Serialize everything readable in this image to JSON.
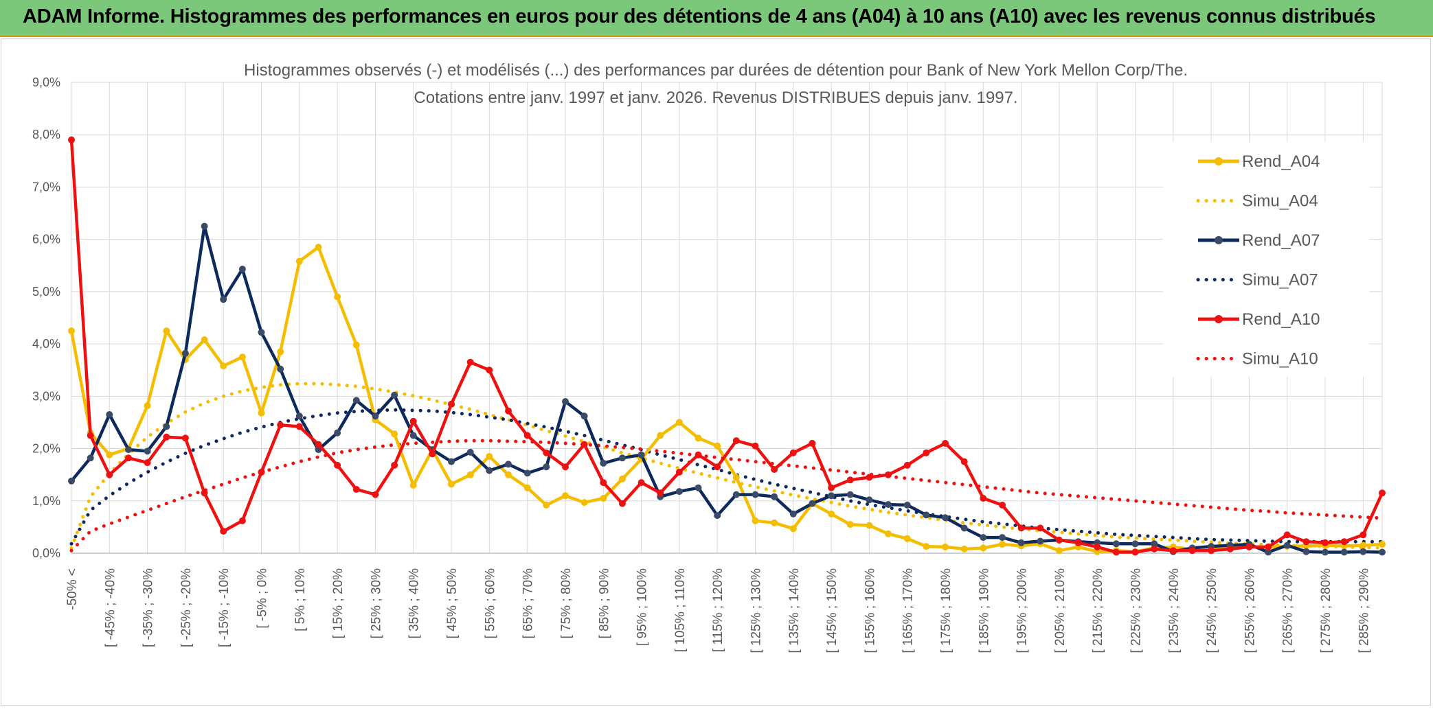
{
  "banner": {
    "text": "ADAM Informe. Histogrammes des performances en euros pour des détentions de 4 ans (A04) à 10 ans (A10) avec les revenus connus distribués"
  },
  "colors": {
    "banner_bg": "#7bc87b",
    "banner_border": "#d9a000",
    "A04": "#f5bd00",
    "A07": "#0e2a5c",
    "A07_marker": "#3b4a66",
    "A10": "#ee1111",
    "grid": "#d9d9d9"
  },
  "chart_data": {
    "type": "line",
    "title_line1": "Histogrammes observés (-) et modélisés (...) des performances par durées de détention pour Bank of New York Mellon Corp/The.",
    "title_line2": "Cotations entre janv. 1997 et janv. 2026. Revenus DISTRIBUES depuis janv. 1997.",
    "ylim": [
      0,
      9
    ],
    "yticks": [
      "0,0%",
      "1,0%",
      "2,0%",
      "3,0%",
      "4,0%",
      "5,0%",
      "6,0%",
      "7,0%",
      "8,0%",
      "9,0%"
    ],
    "grid": true,
    "legend_position": "right",
    "x_labels": [
      "-50% <",
      "[ -45% ; -40%",
      "[ -35% ; -30%",
      "[ -25% ; -20%",
      "[ -15% ; -10%",
      "[ -5% ; 0%",
      "[ 5% ; 10%",
      "[ 15% ; 20%",
      "[ 25% ; 30%",
      "[ 35% ; 40%",
      "[ 45% ; 50%",
      "[ 55% ; 60%",
      "[ 65% ; 70%",
      "[ 75% ; 80%",
      "[ 85% ; 90%",
      "[ 95% ; 100%",
      "[ 105% ; 110%",
      "[ 115% ; 120%",
      "[ 125% ; 130%",
      "[ 135% ; 140%",
      "[ 145% ; 150%",
      "[ 155% ; 160%",
      "[ 165% ; 170%",
      "[ 175% ; 180%",
      "[ 185% ; 190%",
      "[ 195% ; 200%",
      "[ 205% ; 210%",
      "[ 215% ; 220%",
      "[ 225% ; 230%",
      "[ 235% ; 240%",
      "[ 245% ; 250%",
      "[ 255% ; 260%",
      "[ 265% ; 270%",
      "[ 275% ; 280%",
      "[ 285% ; 290%"
    ],
    "n_points": 70,
    "series": [
      {
        "name": "Rend_A04",
        "style": "solid",
        "color": "#f5bd00",
        "values": [
          4.25,
          2.3,
          1.88,
          2.0,
          2.82,
          4.25,
          3.7,
          4.08,
          3.58,
          3.75,
          2.68,
          3.85,
          5.58,
          5.85,
          4.9,
          3.98,
          2.55,
          2.28,
          1.3,
          1.98,
          1.32,
          1.5,
          1.85,
          1.5,
          1.25,
          0.92,
          1.1,
          0.97,
          1.05,
          1.42,
          1.8,
          2.25,
          2.5,
          2.2,
          2.05,
          1.45,
          0.62,
          0.58,
          0.47,
          0.95,
          0.75,
          0.55,
          0.53,
          0.37,
          0.28,
          0.13,
          0.12,
          0.08,
          0.1,
          0.17,
          0.14,
          0.18,
          0.05,
          0.12,
          0.03,
          0.05,
          0.03,
          0.1,
          0.12,
          0.07,
          0.08,
          0.1,
          0.12,
          0.12,
          0.13,
          0.14,
          0.15,
          0.14,
          0.15,
          0.17
        ]
      },
      {
        "name": "Simu_A04",
        "style": "dotted",
        "color": "#f5bd00",
        "values": [
          0.1,
          1.08,
          1.52,
          1.9,
          2.22,
          2.48,
          2.7,
          2.87,
          3.0,
          3.1,
          3.17,
          3.22,
          3.24,
          3.24,
          3.22,
          3.19,
          3.14,
          3.08,
          3.01,
          2.93,
          2.84,
          2.75,
          2.65,
          2.55,
          2.45,
          2.34,
          2.24,
          2.13,
          2.03,
          1.92,
          1.82,
          1.72,
          1.62,
          1.53,
          1.44,
          1.35,
          1.27,
          1.19,
          1.11,
          1.04,
          0.97,
          0.9,
          0.84,
          0.78,
          0.73,
          0.68,
          0.63,
          0.58,
          0.54,
          0.5,
          0.46,
          0.43,
          0.4,
          0.37,
          0.34,
          0.31,
          0.29,
          0.27,
          0.25,
          0.23,
          0.21,
          0.19,
          0.18,
          0.16,
          0.15,
          0.14,
          0.13,
          0.12,
          0.11,
          0.1
        ]
      },
      {
        "name": "Rend_A07",
        "style": "solid",
        "color": "#0e2a5c",
        "values": [
          1.38,
          1.82,
          2.65,
          1.98,
          1.95,
          2.42,
          3.82,
          6.25,
          4.85,
          5.43,
          4.22,
          3.52,
          2.62,
          1.98,
          2.3,
          2.92,
          2.62,
          3.02,
          2.25,
          1.98,
          1.75,
          1.93,
          1.58,
          1.7,
          1.53,
          1.65,
          2.9,
          2.62,
          1.72,
          1.82,
          1.88,
          1.08,
          1.18,
          1.25,
          0.72,
          1.12,
          1.12,
          1.08,
          0.75,
          0.95,
          1.1,
          1.12,
          1.02,
          0.93,
          0.92,
          0.73,
          0.68,
          0.48,
          0.3,
          0.3,
          0.2,
          0.23,
          0.25,
          0.22,
          0.2,
          0.18,
          0.18,
          0.18,
          0.03,
          0.1,
          0.13,
          0.15,
          0.17,
          0.02,
          0.15,
          0.03,
          0.02,
          0.02,
          0.03,
          0.02
        ]
      },
      {
        "name": "Simu_A07",
        "style": "dotted",
        "color": "#0e2a5c",
        "values": [
          0.18,
          0.82,
          1.1,
          1.34,
          1.55,
          1.74,
          1.91,
          2.06,
          2.19,
          2.31,
          2.41,
          2.5,
          2.57,
          2.63,
          2.68,
          2.71,
          2.73,
          2.74,
          2.73,
          2.72,
          2.69,
          2.65,
          2.6,
          2.55,
          2.48,
          2.41,
          2.33,
          2.25,
          2.16,
          2.07,
          1.98,
          1.88,
          1.79,
          1.69,
          1.6,
          1.5,
          1.41,
          1.32,
          1.24,
          1.16,
          1.08,
          1.0,
          0.93,
          0.87,
          0.81,
          0.75,
          0.7,
          0.65,
          0.6,
          0.56,
          0.52,
          0.48,
          0.45,
          0.42,
          0.39,
          0.36,
          0.34,
          0.32,
          0.3,
          0.28,
          0.26,
          0.25,
          0.24,
          0.23,
          0.22,
          0.22,
          0.22,
          0.22,
          0.22,
          0.22
        ]
      },
      {
        "name": "Rend_A10",
        "style": "solid",
        "color": "#ee1111",
        "values": [
          7.9,
          2.25,
          1.5,
          1.82,
          1.73,
          2.22,
          2.2,
          1.15,
          0.42,
          0.62,
          1.55,
          2.45,
          2.42,
          2.08,
          1.68,
          1.22,
          1.12,
          1.68,
          2.52,
          1.9,
          2.85,
          3.65,
          3.5,
          2.72,
          2.25,
          1.92,
          1.65,
          2.08,
          1.35,
          0.95,
          1.35,
          1.15,
          1.55,
          1.88,
          1.65,
          2.15,
          2.05,
          1.6,
          1.92,
          2.1,
          1.25,
          1.4,
          1.45,
          1.5,
          1.68,
          1.92,
          2.1,
          1.75,
          1.05,
          0.92,
          0.48,
          0.48,
          0.25,
          0.2,
          0.12,
          0.02,
          0.02,
          0.08,
          0.05,
          0.05,
          0.05,
          0.08,
          0.12,
          0.12,
          0.35,
          0.22,
          0.2,
          0.22,
          0.35,
          1.15
        ]
      },
      {
        "name": "Simu_A10",
        "style": "dotted",
        "color": "#ee1111",
        "values": [
          0.05,
          0.42,
          0.56,
          0.69,
          0.82,
          0.95,
          1.08,
          1.2,
          1.32,
          1.44,
          1.55,
          1.65,
          1.75,
          1.84,
          1.92,
          1.98,
          2.03,
          2.07,
          2.1,
          2.12,
          2.14,
          2.15,
          2.15,
          2.14,
          2.13,
          2.12,
          2.1,
          2.08,
          2.05,
          2.02,
          1.99,
          1.95,
          1.91,
          1.87,
          1.83,
          1.79,
          1.75,
          1.71,
          1.67,
          1.63,
          1.59,
          1.55,
          1.51,
          1.47,
          1.43,
          1.39,
          1.35,
          1.31,
          1.27,
          1.23,
          1.19,
          1.15,
          1.12,
          1.09,
          1.06,
          1.03,
          1.0,
          0.97,
          0.94,
          0.91,
          0.88,
          0.85,
          0.82,
          0.8,
          0.77,
          0.75,
          0.73,
          0.71,
          0.69,
          0.67
        ]
      }
    ]
  }
}
